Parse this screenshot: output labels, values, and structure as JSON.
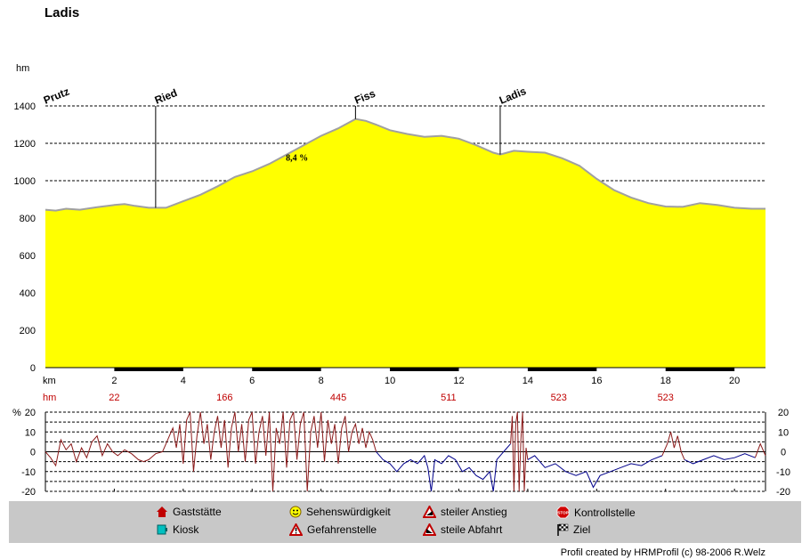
{
  "title": "Ladis",
  "credit": "Profil created by HRMProfil (c) 98-2006 R.Welz",
  "chart_data": [
    {
      "type": "area",
      "name": "elevation-profile",
      "y_unit_label": "hm",
      "x_unit_label": "km",
      "xlim": [
        0,
        20.9
      ],
      "ylim": [
        0,
        1400
      ],
      "y_ticks": [
        0,
        200,
        400,
        600,
        800,
        1000,
        1200,
        1400
      ],
      "x_ticks": [
        2,
        4,
        6,
        8,
        10,
        12,
        14,
        16,
        18,
        20
      ],
      "grid": true,
      "fill_color": "#ffff00",
      "line_color": "#a0a0a0",
      "points": [
        [
          0,
          845
        ],
        [
          0.3,
          840
        ],
        [
          0.6,
          850
        ],
        [
          1,
          845
        ],
        [
          1.5,
          858
        ],
        [
          2,
          870
        ],
        [
          2.3,
          875
        ],
        [
          2.6,
          865
        ],
        [
          3,
          855
        ],
        [
          3.5,
          855
        ],
        [
          4,
          890
        ],
        [
          4.5,
          925
        ],
        [
          5,
          970
        ],
        [
          5.5,
          1020
        ],
        [
          6,
          1050
        ],
        [
          6.5,
          1090
        ],
        [
          7,
          1140
        ],
        [
          7.5,
          1190
        ],
        [
          8,
          1240
        ],
        [
          8.5,
          1280
        ],
        [
          9,
          1330
        ],
        [
          9.3,
          1320
        ],
        [
          9.6,
          1300
        ],
        [
          10,
          1270
        ],
        [
          10.5,
          1250
        ],
        [
          11,
          1235
        ],
        [
          11.5,
          1240
        ],
        [
          12,
          1225
        ],
        [
          12.5,
          1190
        ],
        [
          13,
          1150
        ],
        [
          13.2,
          1140
        ],
        [
          13.6,
          1160
        ],
        [
          14,
          1155
        ],
        [
          14.5,
          1150
        ],
        [
          15,
          1120
        ],
        [
          15.5,
          1080
        ],
        [
          16,
          1010
        ],
        [
          16.5,
          950
        ],
        [
          17,
          910
        ],
        [
          17.5,
          880
        ],
        [
          18,
          862
        ],
        [
          18.5,
          860
        ],
        [
          19,
          880
        ],
        [
          19.5,
          870
        ],
        [
          20,
          855
        ],
        [
          20.5,
          850
        ],
        [
          20.9,
          850
        ]
      ],
      "waypoints": [
        {
          "label": "Prutz",
          "km": 0.0,
          "elev": 845,
          "tick": false
        },
        {
          "label": "Ried",
          "km": 3.2,
          "elev": 855,
          "tick": true
        },
        {
          "label": "Fiss",
          "km": 9.0,
          "elev": 1330,
          "tick": true
        },
        {
          "label": "Ladis",
          "km": 13.2,
          "elev": 1140,
          "tick": true
        }
      ],
      "annotations": [
        {
          "text": "8,4 %",
          "km": 7.3,
          "elev": 1108
        }
      ],
      "cumulative_label": "hm",
      "cumulative_climb": [
        {
          "km": 2,
          "value": "22"
        },
        {
          "km": 5.2,
          "value": "166"
        },
        {
          "km": 8.5,
          "value": "445"
        },
        {
          "km": 11.7,
          "value": "511"
        },
        {
          "km": 14.9,
          "value": "523"
        },
        {
          "km": 18,
          "value": "523"
        }
      ],
      "cumulative_color": "#c00000",
      "axis_band_segments": [
        [
          2,
          4
        ],
        [
          6,
          8
        ],
        [
          10,
          12
        ],
        [
          14,
          16
        ],
        [
          18,
          20
        ]
      ]
    },
    {
      "type": "line",
      "name": "gradient-profile",
      "y_unit_label": "%",
      "xlim": [
        0,
        20.9
      ],
      "ylim": [
        -20,
        20
      ],
      "y_ticks": [
        -20,
        -10,
        0,
        10,
        20
      ],
      "grid": true,
      "series": [
        {
          "color": "#8b1a1a",
          "points": [
            [
              0,
              0
            ],
            [
              0.15,
              -3
            ],
            [
              0.3,
              -7
            ],
            [
              0.45,
              6
            ],
            [
              0.6,
              1
            ],
            [
              0.75,
              4
            ],
            [
              0.9,
              -5
            ],
            [
              1.05,
              2
            ],
            [
              1.2,
              -3
            ],
            [
              1.35,
              5
            ],
            [
              1.5,
              8
            ],
            [
              1.65,
              -2
            ],
            [
              1.8,
              4
            ],
            [
              1.95,
              0
            ],
            [
              2.1,
              -2
            ],
            [
              2.3,
              1
            ],
            [
              2.5,
              -1
            ],
            [
              2.7,
              -4
            ],
            [
              2.85,
              -5
            ],
            [
              3,
              -4
            ],
            [
              3.2,
              -1
            ],
            [
              3.4,
              0
            ],
            [
              3.5,
              4
            ],
            [
              3.6,
              8
            ],
            [
              3.7,
              12
            ],
            [
              3.8,
              2
            ],
            [
              3.9,
              14
            ],
            [
              4.0,
              -6
            ],
            [
              4.1,
              16
            ],
            [
              4.2,
              20
            ],
            [
              4.3,
              -10
            ],
            [
              4.4,
              8
            ],
            [
              4.5,
              20
            ],
            [
              4.6,
              4
            ],
            [
              4.7,
              14
            ],
            [
              4.8,
              -4
            ],
            [
              4.9,
              10
            ],
            [
              5.0,
              18
            ],
            [
              5.1,
              2
            ],
            [
              5.2,
              16
            ],
            [
              5.3,
              -8
            ],
            [
              5.4,
              12
            ],
            [
              5.5,
              20
            ],
            [
              5.6,
              0
            ],
            [
              5.7,
              14
            ],
            [
              5.8,
              -5
            ],
            [
              5.9,
              16
            ],
            [
              6.0,
              20
            ],
            [
              6.1,
              -6
            ],
            [
              6.2,
              10
            ],
            [
              6.3,
              18
            ],
            [
              6.4,
              -2
            ],
            [
              6.5,
              20
            ],
            [
              6.6,
              -20
            ],
            [
              6.7,
              12
            ],
            [
              6.8,
              4
            ],
            [
              6.9,
              20
            ],
            [
              7.0,
              -8
            ],
            [
              7.1,
              16
            ],
            [
              7.2,
              20
            ],
            [
              7.3,
              -4
            ],
            [
              7.4,
              14
            ],
            [
              7.5,
              20
            ],
            [
              7.6,
              -20
            ],
            [
              7.7,
              10
            ],
            [
              7.8,
              18
            ],
            [
              7.9,
              2
            ],
            [
              8.0,
              20
            ],
            [
              8.1,
              -5
            ],
            [
              8.2,
              16
            ],
            [
              8.3,
              4
            ],
            [
              8.4,
              14
            ],
            [
              8.5,
              -6
            ],
            [
              8.6,
              12
            ],
            [
              8.7,
              18
            ],
            [
              8.8,
              0
            ],
            [
              8.9,
              10
            ],
            [
              9.0,
              14
            ],
            [
              9.1,
              4
            ],
            [
              9.2,
              12
            ],
            [
              9.3,
              2
            ],
            [
              9.4,
              10
            ],
            [
              9.5,
              6
            ],
            [
              9.6,
              0
            ]
          ]
        },
        {
          "color": "#00008b",
          "points": [
            [
              9.6,
              0
            ],
            [
              9.8,
              -4
            ],
            [
              10.0,
              -6
            ],
            [
              10.2,
              -10
            ],
            [
              10.4,
              -6
            ],
            [
              10.6,
              -4
            ],
            [
              10.8,
              -6
            ],
            [
              11.0,
              -2
            ],
            [
              11.1,
              -8
            ],
            [
              11.2,
              -20
            ],
            [
              11.3,
              -4
            ],
            [
              11.5,
              -6
            ],
            [
              11.7,
              -2
            ],
            [
              11.9,
              -4
            ],
            [
              12.1,
              -10
            ],
            [
              12.3,
              -8
            ],
            [
              12.5,
              -12
            ],
            [
              12.7,
              -14
            ],
            [
              12.9,
              -10
            ],
            [
              13.0,
              -20
            ],
            [
              13.1,
              -4
            ],
            [
              13.3,
              0
            ],
            [
              13.5,
              4
            ]
          ]
        },
        {
          "color": "#8b1a1a",
          "points": [
            [
              13.5,
              4
            ],
            [
              13.55,
              18
            ],
            [
              13.6,
              -20
            ],
            [
              13.65,
              14
            ],
            [
              13.7,
              20
            ],
            [
              13.75,
              -20
            ],
            [
              13.8,
              6
            ],
            [
              13.85,
              20
            ],
            [
              13.9,
              -20
            ],
            [
              13.95,
              2
            ],
            [
              14.0,
              -4
            ]
          ]
        },
        {
          "color": "#00008b",
          "points": [
            [
              14.0,
              -4
            ],
            [
              14.2,
              -2
            ],
            [
              14.5,
              -8
            ],
            [
              14.8,
              -6
            ],
            [
              15.1,
              -10
            ],
            [
              15.4,
              -12
            ],
            [
              15.7,
              -10
            ],
            [
              15.9,
              -18
            ],
            [
              16.1,
              -12
            ],
            [
              16.4,
              -10
            ],
            [
              16.7,
              -8
            ],
            [
              17.0,
              -6
            ],
            [
              17.3,
              -7
            ],
            [
              17.6,
              -4
            ],
            [
              17.9,
              -2
            ]
          ]
        },
        {
          "color": "#8b1a1a",
          "points": [
            [
              17.9,
              -2
            ],
            [
              18.05,
              4
            ],
            [
              18.15,
              10
            ],
            [
              18.25,
              2
            ],
            [
              18.35,
              8
            ],
            [
              18.45,
              0
            ],
            [
              18.55,
              -4
            ]
          ]
        },
        {
          "color": "#00008b",
          "points": [
            [
              18.55,
              -4
            ],
            [
              18.8,
              -6
            ],
            [
              19.1,
              -4
            ],
            [
              19.4,
              -2
            ],
            [
              19.7,
              -4
            ],
            [
              20.0,
              -3
            ],
            [
              20.3,
              -1
            ],
            [
              20.6,
              -3
            ]
          ]
        },
        {
          "color": "#8b1a1a",
          "points": [
            [
              20.6,
              -3
            ],
            [
              20.75,
              4
            ],
            [
              20.9,
              -2
            ]
          ]
        }
      ]
    }
  ],
  "legend": [
    {
      "label": "Gaststätte",
      "icon": "restaurant-icon"
    },
    {
      "label": "Kiosk",
      "icon": "kiosk-icon"
    },
    {
      "label": "Sehenswürdigkeit",
      "icon": "smiley-icon"
    },
    {
      "label": "Gefahrenstelle",
      "icon": "warning-icon"
    },
    {
      "label": "steiler Anstieg",
      "icon": "steep-climb-icon"
    },
    {
      "label": "steile Abfahrt",
      "icon": "steep-descent-icon"
    },
    {
      "label": "Kontrollstelle",
      "icon": "stop-icon"
    },
    {
      "label": "Ziel",
      "icon": "finish-flag-icon"
    }
  ]
}
